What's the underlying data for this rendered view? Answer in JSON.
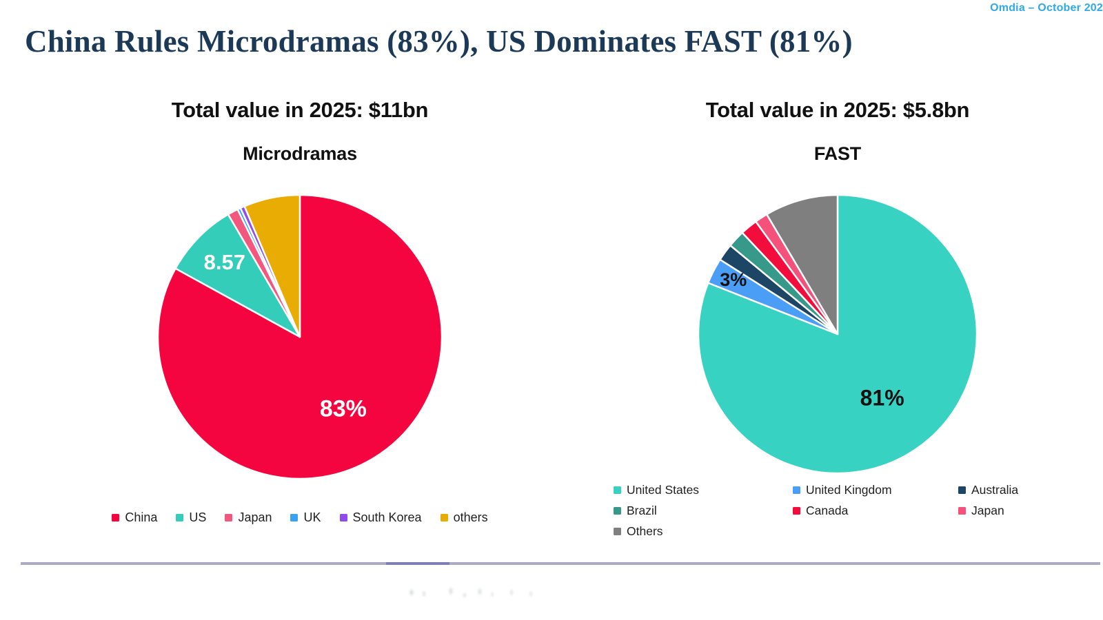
{
  "credit": "Omdia – October 202",
  "title": "China Rules Microdramas (83%), US Dominates FAST (81%)",
  "colors": {
    "title": "#1C3A57",
    "credit": "#2FA9E8",
    "divider": "#ABABC2",
    "pie_slice_stroke": "#FFFFFF"
  },
  "chart_data": [
    {
      "type": "pie",
      "title": "Total value in 2025: $11bn",
      "subtitle": "Microdramas",
      "start_angle_deg": 0,
      "direction": "clockwise",
      "legend_position": "bottom-inline",
      "label_color": "#FFFFFF",
      "slices": [
        {
          "name": "China",
          "value": 83,
          "color": "#F5053F",
          "label": "83%",
          "label_r": 0.6,
          "label_size": 34
        },
        {
          "name": "US",
          "value": 8.57,
          "color": "#33CDBA",
          "label": "8.57",
          "label_r": 0.74,
          "label_size": 31
        },
        {
          "name": "Japan",
          "value": 1.2,
          "color": "#F4577E"
        },
        {
          "name": "UK",
          "value": 0.35,
          "color": "#38A3F4"
        },
        {
          "name": "South Korea",
          "value": 0.5,
          "color": "#8F4BF0"
        },
        {
          "name": "others",
          "value": 6.38,
          "color": "#E9AC05"
        }
      ]
    },
    {
      "type": "pie",
      "title": "Total value in 2025: $5.8bn",
      "subtitle": "FAST",
      "start_angle_deg": 0,
      "direction": "clockwise",
      "legend_position": "bottom-grid",
      "label_color": "#111111",
      "slices": [
        {
          "name": "United States",
          "value": 81,
          "color": "#38D2C2",
          "label": "81%",
          "label_r": 0.57,
          "label_size": 32
        },
        {
          "name": "United Kingdom",
          "value": 3,
          "color": "#4B9EF5",
          "label": "3%",
          "label_r": 0.84,
          "label_size": 27
        },
        {
          "name": "Australia",
          "value": 2,
          "color": "#1C4566"
        },
        {
          "name": "Brazil",
          "value": 2,
          "color": "#37998A"
        },
        {
          "name": "Canada",
          "value": 2,
          "color": "#F20D3D"
        },
        {
          "name": "Japan",
          "value": 1.5,
          "color": "#F4527A"
        },
        {
          "name": "Others",
          "value": 8.5,
          "color": "#7F7F7F"
        }
      ]
    }
  ]
}
